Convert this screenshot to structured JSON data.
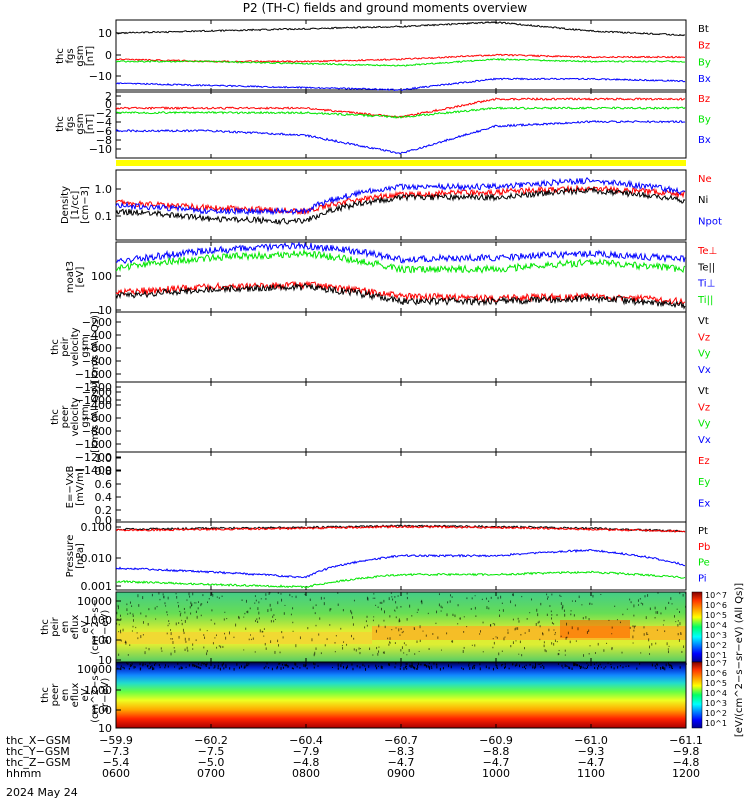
{
  "title": "P2 (TH-C) fields and ground moments overview",
  "date_label": "2024 May 24",
  "colors": {
    "black": "#000000",
    "red": "#ff0000",
    "green": "#00e600",
    "blue": "#0000ff",
    "yellow": "#ffff00"
  },
  "panels": [
    {
      "id": "bgsm",
      "ylabel": [
        "thc",
        "fgs",
        "gsm",
        "[nT]"
      ],
      "ticks": [
        "10",
        "0",
        "−10"
      ],
      "legend": [
        {
          "t": "Bt",
          "c": "black"
        },
        {
          "t": "Bz",
          "c": "red"
        },
        {
          "t": "By",
          "c": "green"
        },
        {
          "t": "Bx",
          "c": "blue"
        }
      ]
    },
    {
      "id": "bgsm2",
      "ylabel": [
        "thc",
        "fgs",
        "gsm",
        "[nT]"
      ],
      "ticks": [
        "2",
        "0",
        "−2",
        "−4",
        "−6",
        "−8",
        "−10"
      ],
      "legend": [
        {
          "t": "Bz",
          "c": "red"
        },
        {
          "t": "By",
          "c": "green"
        },
        {
          "t": "Bx",
          "c": "blue"
        }
      ]
    },
    {
      "id": "density",
      "ylabel": [
        "Density",
        "[1/cc]",
        "[cm−3]"
      ],
      "ticks": [
        "1.0",
        "0.1"
      ],
      "legend": [
        {
          "t": "Ne",
          "c": "red"
        },
        {
          "t": "Ni",
          "c": "black"
        },
        {
          "t": "Npot",
          "c": "blue"
        }
      ]
    },
    {
      "id": "temp",
      "ylabel": [
        "moat3",
        "[eV]"
      ],
      "ticks": [
        "100",
        "10"
      ],
      "legend": [
        {
          "t": "Te⊥",
          "c": "red"
        },
        {
          "t": "Te||",
          "c": "black"
        },
        {
          "t": "Ti⊥",
          "c": "blue"
        },
        {
          "t": "Ti||",
          "c": "green"
        }
      ]
    },
    {
      "id": "veli",
      "ylabel": [
        "thc",
        "peir",
        "velocity",
        "gsm",
        "[km/s (All Qs)]"
      ],
      "ticks": [
        "−200",
        "−400",
        "−600",
        "−800",
        "−1000",
        "−1200",
        "−1400"
      ],
      "legend": [
        {
          "t": "Vt",
          "c": "black"
        },
        {
          "t": "Vz",
          "c": "red"
        },
        {
          "t": "Vy",
          "c": "green"
        },
        {
          "t": "Vx",
          "c": "blue"
        }
      ]
    },
    {
      "id": "vele",
      "ylabel": [
        "thc",
        "peer",
        "velocity",
        "gsm",
        "[km/s (All Qs)]"
      ],
      "ticks": [
        "−200",
        "−400",
        "−600",
        "−800",
        "−1000",
        "−1200",
        "−1400"
      ],
      "legend": [
        {
          "t": "Vt",
          "c": "black"
        },
        {
          "t": "Vz",
          "c": "red"
        },
        {
          "t": "Vy",
          "c": "green"
        },
        {
          "t": "Vx",
          "c": "blue"
        }
      ]
    },
    {
      "id": "efield",
      "ylabel": [
        "E=−VxB",
        "[mV/m]"
      ],
      "ticks": [
        "1.0",
        "0.8",
        "0.6",
        "0.4",
        "0.2",
        "0.0"
      ],
      "legend": [
        {
          "t": "Ez",
          "c": "red"
        },
        {
          "t": "Ey",
          "c": "green"
        },
        {
          "t": "Ex",
          "c": "blue"
        }
      ]
    },
    {
      "id": "pressure",
      "ylabel": [
        "Pressure",
        "[nPa]"
      ],
      "ticks": [
        "0.100",
        "0.010",
        "0.001"
      ],
      "legend": [
        {
          "t": "Pt",
          "c": "black"
        },
        {
          "t": "Pb",
          "c": "red"
        },
        {
          "t": "Pe",
          "c": "green"
        },
        {
          "t": "Pi",
          "c": "blue"
        }
      ]
    },
    {
      "id": "spec_i",
      "ylabel": [
        "thc",
        "peir",
        "en",
        "eflux",
        "eV",
        "(cm^2−s−",
        "sr−eV)"
      ],
      "ticks": [
        "10000",
        "1000",
        "100",
        "10"
      ],
      "legend": []
    },
    {
      "id": "spec_e",
      "ylabel": [
        "thc",
        "peer",
        "en",
        "eflux",
        "eV",
        "(cm^2−s−",
        "sr−eV)"
      ],
      "ticks": [
        "10000",
        "1000",
        "100",
        "10"
      ],
      "legend": []
    }
  ],
  "colorbar": {
    "label": "[eV/(cm^2−s−sr−eV) (All Qs)]",
    "ticks": [
      "10^7",
      "10^6",
      "10^5",
      "10^4",
      "10^3",
      "10^2",
      "10^1"
    ]
  },
  "footer": {
    "rows": [
      {
        "label": "thc_X−GSM",
        "values": [
          "−59.9",
          "−60.2",
          "−60.4",
          "−60.7",
          "−60.9",
          "−61.0",
          "−61.1"
        ]
      },
      {
        "label": "thc_Y−GSM",
        "values": [
          "−7.3",
          "−7.5",
          "−7.9",
          "−8.3",
          "−8.8",
          "−9.3",
          "−9.8"
        ]
      },
      {
        "label": "thc_Z−GSM",
        "values": [
          "−5.4",
          "−5.0",
          "−4.8",
          "−4.7",
          "−4.7",
          "−4.7",
          "−4.8"
        ]
      },
      {
        "label": "hhmm",
        "values": [
          "0600",
          "0700",
          "0800",
          "0900",
          "1000",
          "1100",
          "1200"
        ]
      }
    ]
  },
  "chart_data": [
    {
      "type": "line",
      "title": "P2 (TH-C) fields and ground moments overview",
      "ylabel": "thc fgs gsm [nT]",
      "x": [
        "0600",
        "0700",
        "0800",
        "0900",
        "1000",
        "1100",
        "1200"
      ],
      "ylim": [
        -15,
        18
      ],
      "series": [
        {
          "name": "Bt",
          "values": [
            12,
            13,
            14,
            15,
            17,
            13,
            11
          ]
        },
        {
          "name": "Bz",
          "values": [
            0,
            -1,
            -1,
            0,
            2,
            1,
            1
          ]
        },
        {
          "name": "By",
          "values": [
            -1,
            -1,
            -2,
            -3,
            0,
            -1,
            -1
          ]
        },
        {
          "name": "Bx",
          "values": [
            -11,
            -12,
            -13,
            -14,
            -9,
            -9,
            -10
          ]
        }
      ]
    },
    {
      "type": "line",
      "ylabel": "thc fgs gsm [nT]",
      "x": [
        "0600",
        "0700",
        "0800",
        "0900",
        "1000",
        "1100",
        "1200"
      ],
      "ylim": [
        -12,
        3
      ],
      "series": [
        {
          "name": "Bz",
          "values": [
            -1,
            -1,
            -1,
            -3,
            1,
            1,
            1
          ]
        },
        {
          "name": "By",
          "values": [
            -2,
            -2,
            -2,
            -3,
            -1,
            -1,
            -1
          ]
        },
        {
          "name": "Bx",
          "values": [
            -6,
            -6,
            -7,
            -11,
            -5,
            -4,
            -4
          ]
        }
      ]
    },
    {
      "type": "line",
      "ylabel": "Density [1/cc] [cm−3]",
      "x": [
        "0600",
        "0700",
        "0800",
        "0900",
        "1000",
        "1100",
        "1200"
      ],
      "series": [
        {
          "name": "Ne",
          "values": [
            0.35,
            0.25,
            0.2,
            0.6,
            0.7,
            0.9,
            0.6
          ]
        },
        {
          "name": "Ni",
          "values": [
            0.2,
            0.12,
            0.1,
            0.5,
            0.5,
            0.8,
            0.4
          ]
        },
        {
          "name": "Npot",
          "values": [
            0.3,
            0.2,
            0.2,
            1.0,
            1.0,
            1.5,
            0.7
          ]
        }
      ]
    },
    {
      "type": "line",
      "ylabel": "moat3 [eV]",
      "x": [
        "0600",
        "0700",
        "0800",
        "0900",
        "1000",
        "1100",
        "1200"
      ],
      "series": [
        {
          "name": "Te⊥",
          "values": [
            25,
            35,
            40,
            20,
            18,
            20,
            15
          ]
        },
        {
          "name": "Te||",
          "values": [
            20,
            30,
            35,
            15,
            15,
            18,
            12
          ]
        },
        {
          "name": "Ti⊥",
          "values": [
            150,
            300,
            400,
            180,
            200,
            250,
            180
          ]
        },
        {
          "name": "Ti||",
          "values": [
            100,
            200,
            250,
            100,
            100,
            150,
            100
          ]
        }
      ]
    },
    {
      "type": "line",
      "ylabel": "Pressure [nPa]",
      "x": [
        "0600",
        "0700",
        "0800",
        "0900",
        "1000",
        "1100",
        "1200"
      ],
      "series": [
        {
          "name": "Pt",
          "values": [
            0.07,
            0.075,
            0.08,
            0.09,
            0.085,
            0.075,
            0.06
          ]
        },
        {
          "name": "Pb",
          "values": [
            0.065,
            0.07,
            0.075,
            0.085,
            0.08,
            0.07,
            0.06
          ]
        },
        {
          "name": "Pe",
          "values": [
            0.0015,
            0.0012,
            0.001,
            0.0025,
            0.0025,
            0.003,
            0.002
          ]
        },
        {
          "name": "Pi",
          "values": [
            0.004,
            0.003,
            0.002,
            0.01,
            0.01,
            0.015,
            0.005
          ]
        }
      ]
    }
  ]
}
